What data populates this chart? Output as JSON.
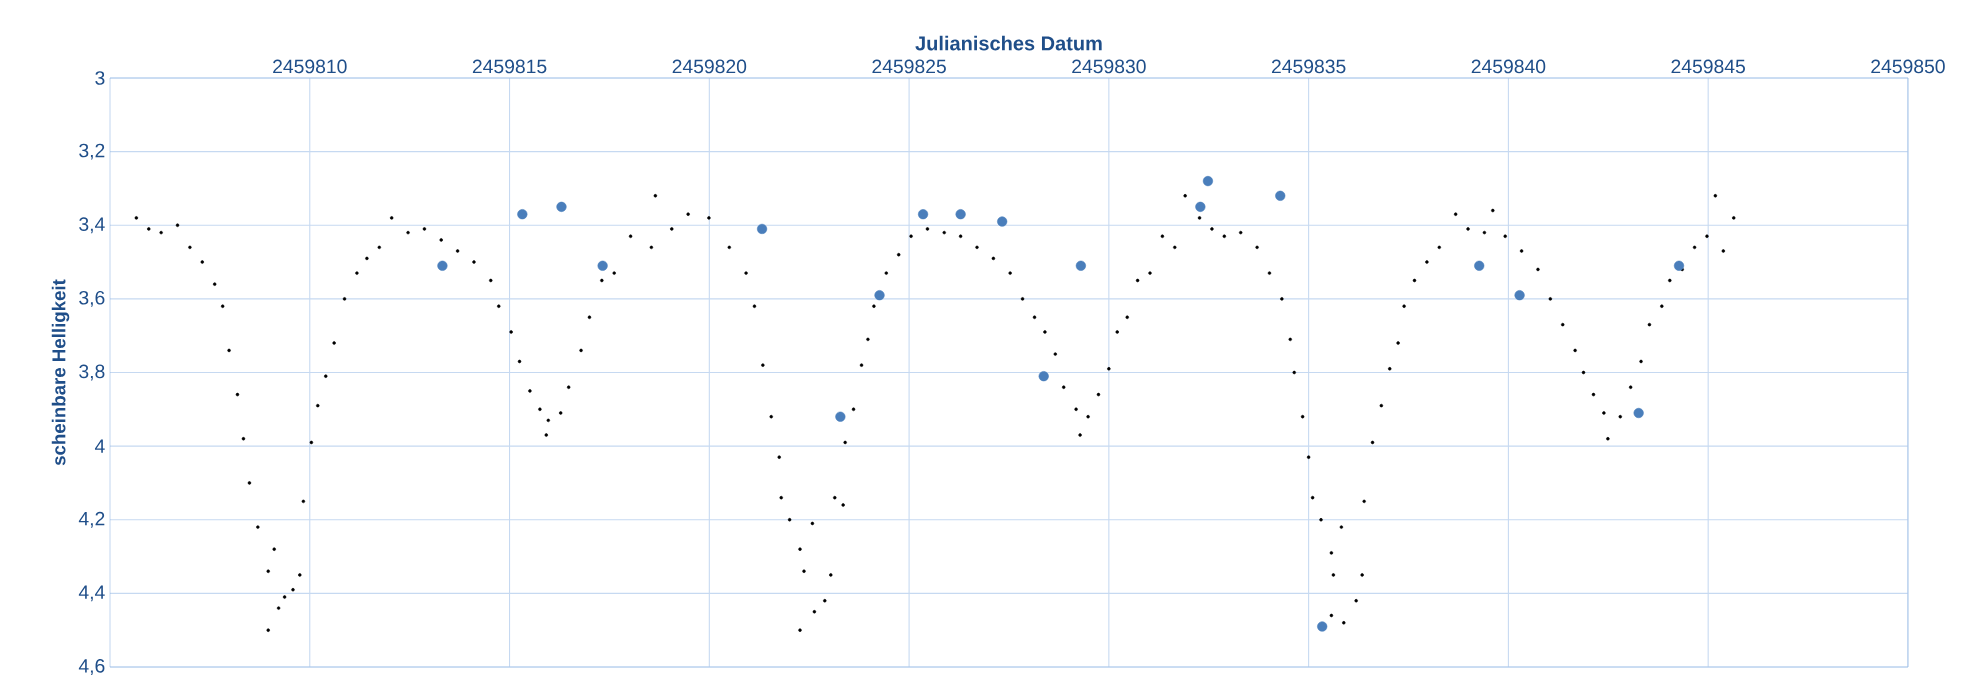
{
  "chart_data": {
    "type": "scatter",
    "xlabel": "Julianisches Datum",
    "ylabel": "scheinbare Helligkeit",
    "xlim": [
      2459805,
      2459850
    ],
    "xticks": [
      2459810,
      2459815,
      2459820,
      2459825,
      2459830,
      2459835,
      2459840,
      2459845,
      2459850
    ],
    "ylim": [
      4.6,
      3
    ],
    "yticks": [
      3,
      {
        "value": 3.2,
        "label": "3,2"
      },
      {
        "value": 3.4,
        "label": "3,4"
      },
      {
        "value": 3.6,
        "label": "3,6"
      },
      {
        "value": 3.8,
        "label": "3,8"
      },
      4,
      {
        "value": 4.2,
        "label": "4,2"
      },
      {
        "value": 4.4,
        "label": "4,4"
      },
      {
        "value": 4.6,
        "label": "4,6"
      }
    ],
    "grid": true,
    "series": [
      {
        "color": "#000000",
        "x": [
          2459805.66,
          2459805.97,
          2459806.28,
          2459806.69,
          2459807.0,
          2459807.31,
          2459807.62,
          2459807.82,
          2459807.98,
          2459808.19,
          2459808.34,
          2459808.49,
          2459808.7,
          2459808.96,
          2459809.11,
          2459809.22,
          2459808.96,
          2459809.37,
          2459809.58,
          2459809.75,
          2459809.84,
          2459810.04,
          2459810.2,
          2459810.4,
          2459810.61,
          2459810.87,
          2459811.18,
          2459811.43,
          2459811.74,
          2459812.05,
          2459812.46,
          2459812.87,
          2459813.29,
          2459813.7,
          2459814.11,
          2459814.53,
          2459814.73,
          2459815.04,
          2459815.25,
          2459815.51,
          2459815.76,
          2459815.97,
          2459815.92,
          2459816.28,
          2459816.48,
          2459816.79,
          2459817.0,
          2459817.31,
          2459817.62,
          2459818.03,
          2459818.55,
          2459818.65,
          2459819.06,
          2459819.47,
          2459819.99,
          2459820.5,
          2459820.92,
          2459821.13,
          2459821.34,
          2459821.55,
          2459821.75,
          2459821.8,
          2459822.01,
          2459822.27,
          2459822.37,
          2459822.27,
          2459822.63,
          2459822.58,
          2459822.89,
          2459823.04,
          2459823.14,
          2459823.35,
          2459823.4,
          2459823.61,
          2459823.81,
          2459823.97,
          2459824.12,
          2459824.43,
          2459824.74,
          2459825.05,
          2459825.46,
          2459825.88,
          2459826.29,
          2459826.7,
          2459827.11,
          2459827.53,
          2459827.84,
          2459828.14,
          2459828.4,
          2459828.66,
          2459828.87,
          2459829.18,
          2459829.28,
          2459829.48,
          2459829.74,
          2459830.0,
          2459830.21,
          2459830.46,
          2459830.72,
          2459831.03,
          2459831.34,
          2459831.65,
          2459831.91,
          2459832.27,
          2459832.58,
          2459832.89,
          2459833.3,
          2459833.71,
          2459834.02,
          2459834.33,
          2459834.54,
          2459834.64,
          2459834.85,
          2459835.0,
          2459835.1,
          2459835.31,
          2459835.57,
          2459835.62,
          2459835.57,
          2459835.88,
          2459835.82,
          2459836.19,
          2459836.34,
          2459836.39,
          2459836.6,
          2459836.82,
          2459837.03,
          2459837.24,
          2459837.39,
          2459837.65,
          2459837.96,
          2459838.27,
          2459838.68,
          2459838.99,
          2459839.4,
          2459839.61,
          2459839.92,
          2459840.33,
          2459840.74,
          2459841.05,
          2459841.36,
          2459841.67,
          2459841.88,
          2459842.13,
          2459842.39,
          2459842.49,
          2459842.8,
          2459843.06,
          2459843.32,
          2459843.53,
          2459843.84,
          2459844.04,
          2459844.35,
          2459844.66,
          2459844.97,
          2459845.18,
          2459845.38,
          2459845.64
        ],
        "values": [
          3.38,
          3.41,
          3.42,
          3.4,
          3.46,
          3.5,
          3.56,
          3.62,
          3.74,
          3.86,
          3.98,
          4.1,
          4.22,
          4.34,
          4.28,
          4.44,
          4.5,
          4.41,
          4.39,
          4.35,
          4.15,
          3.99,
          3.89,
          3.81,
          3.72,
          3.6,
          3.53,
          3.49,
          3.46,
          3.38,
          3.42,
          3.41,
          3.44,
          3.47,
          3.5,
          3.55,
          3.62,
          3.69,
          3.77,
          3.85,
          3.9,
          3.93,
          3.97,
          3.91,
          3.84,
          3.74,
          3.65,
          3.55,
          3.53,
          3.43,
          3.46,
          3.32,
          3.41,
          3.37,
          3.38,
          3.46,
          3.53,
          3.62,
          3.78,
          3.92,
          4.03,
          4.14,
          4.2,
          4.28,
          4.34,
          4.5,
          4.45,
          4.21,
          4.42,
          4.35,
          4.14,
          4.16,
          3.99,
          3.9,
          3.78,
          3.71,
          3.62,
          3.53,
          3.48,
          3.43,
          3.41,
          3.42,
          3.43,
          3.46,
          3.49,
          3.53,
          3.6,
          3.65,
          3.69,
          3.75,
          3.84,
          3.9,
          3.97,
          3.92,
          3.86,
          3.79,
          3.69,
          3.65,
          3.55,
          3.53,
          3.43,
          3.46,
          3.32,
          3.38,
          3.41,
          3.43,
          3.42,
          3.46,
          3.53,
          3.6,
          3.71,
          3.8,
          3.92,
          4.03,
          4.14,
          4.2,
          4.29,
          4.35,
          4.46,
          4.48,
          4.22,
          4.42,
          4.35,
          4.15,
          3.99,
          3.89,
          3.79,
          3.72,
          3.62,
          3.55,
          3.5,
          3.46,
          3.37,
          3.41,
          3.42,
          3.36,
          3.43,
          3.47,
          3.52,
          3.6,
          3.67,
          3.74,
          3.8,
          3.86,
          3.91,
          3.98,
          3.92,
          3.84,
          3.77,
          3.67,
          3.62,
          3.55,
          3.52,
          3.46,
          3.43,
          3.32,
          3.47,
          3.38
        ]
      },
      {
        "color": "#4a7ebb",
        "x": [
          2459813.32,
          2459815.32,
          2459816.3,
          2459817.33,
          2459821.32,
          2459823.28,
          2459824.26,
          2459825.35,
          2459826.29,
          2459827.33,
          2459828.37,
          2459829.3,
          2459832.29,
          2459832.48,
          2459834.29,
          2459835.34,
          2459839.27,
          2459840.28,
          2459843.26,
          2459844.27
        ],
        "values": [
          3.51,
          3.37,
          3.35,
          3.51,
          3.41,
          3.92,
          3.59,
          3.37,
          3.37,
          3.39,
          3.81,
          3.51,
          3.35,
          3.28,
          3.32,
          4.49,
          3.51,
          3.59,
          3.91,
          3.51
        ]
      }
    ]
  }
}
